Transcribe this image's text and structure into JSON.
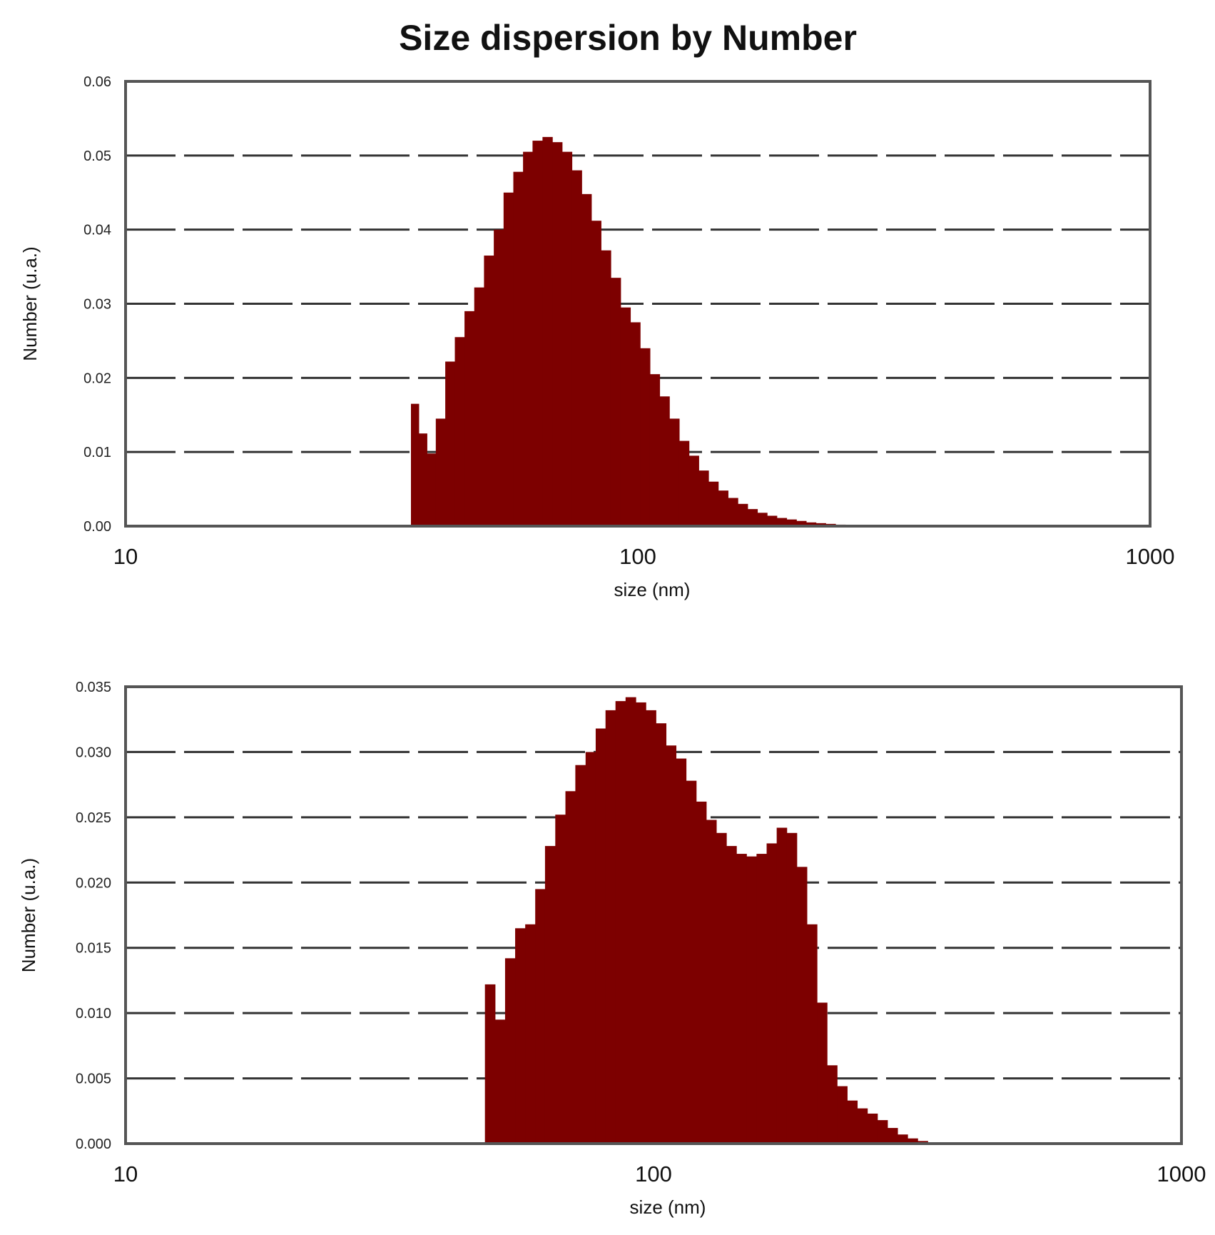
{
  "title": "Size dispersion by Number",
  "chart_data": [
    {
      "type": "bar",
      "title": "",
      "xlabel": "size (nm)",
      "ylabel": "Number (u.a.)",
      "xscale": "log",
      "xlim": [
        10,
        1000
      ],
      "ylim": [
        0,
        0.06
      ],
      "xticks": [
        "10",
        "100",
        "1000"
      ],
      "yticks": [
        "0.00",
        "0.01",
        "0.02",
        "0.03",
        "0.04",
        "0.05",
        "0.06"
      ],
      "grid": true,
      "color": "#7d0000",
      "x": [
        36.7,
        38.0,
        39.5,
        41.2,
        43.0,
        44.9,
        46.9,
        49.0,
        51.2,
        53.5,
        55.9,
        58.4,
        61.0,
        63.7,
        66.6,
        69.6,
        72.7,
        76.0,
        79.4,
        82.9,
        86.6,
        90.5,
        94.6,
        98.8,
        103.3,
        107.9,
        112.7,
        117.8,
        123.1,
        128.6,
        134.4,
        140.4,
        146.7,
        153.3,
        160.2,
        167.4,
        174.9,
        182.7,
        190.9,
        199.5,
        208.5,
        217.8,
        227.6,
        237.8,
        248.5,
        259.7,
        271.3,
        283.5
      ],
      "values": [
        0.0165,
        0.0125,
        0.0098,
        0.0145,
        0.0222,
        0.0255,
        0.029,
        0.0322,
        0.0365,
        0.04,
        0.045,
        0.0478,
        0.0505,
        0.052,
        0.0525,
        0.0518,
        0.0505,
        0.048,
        0.0448,
        0.0412,
        0.0372,
        0.0335,
        0.0295,
        0.0275,
        0.024,
        0.0205,
        0.0175,
        0.0145,
        0.0115,
        0.0095,
        0.0075,
        0.006,
        0.0048,
        0.0038,
        0.003,
        0.0023,
        0.0018,
        0.0014,
        0.0011,
        0.0009,
        0.0007,
        0.0005,
        0.0004,
        0.0003,
        0.0002,
        0.00015,
        0.0001,
        5e-05
      ]
    },
    {
      "type": "bar",
      "title": "",
      "xlabel": "size (nm)",
      "ylabel": "Number (u.a.)",
      "xscale": "log",
      "xlim": [
        10,
        1000
      ],
      "ylim": [
        0,
        0.035
      ],
      "xticks": [
        "10",
        "100",
        "1000"
      ],
      "yticks": [
        "0.000",
        "0.005",
        "0.010",
        "0.015",
        "0.020",
        "0.025",
        "0.030",
        "0.035"
      ],
      "grid": true,
      "color": "#7d0000",
      "x": [
        49.0,
        51.2,
        53.5,
        55.9,
        58.4,
        61.0,
        63.7,
        66.6,
        69.6,
        72.7,
        76.0,
        79.4,
        82.9,
        86.6,
        90.5,
        94.6,
        98.8,
        103.3,
        107.9,
        112.7,
        117.8,
        123.1,
        128.6,
        134.4,
        140.4,
        146.7,
        153.3,
        160.2,
        167.4,
        174.9,
        182.7,
        190.9,
        199.5,
        208.5,
        217.8,
        227.6,
        237.8,
        248.5,
        259.7,
        271.3,
        283.5,
        296.2,
        309.5,
        323.4,
        337.9,
        353.1,
        368.9,
        385.5,
        402.8,
        420.9,
        439.8,
        459.5,
        480.2,
        501.7,
        524.3,
        547.8,
        572.4
      ],
      "values": [
        0.0122,
        0.0095,
        0.0142,
        0.0165,
        0.0168,
        0.0195,
        0.0228,
        0.0252,
        0.027,
        0.029,
        0.03,
        0.0318,
        0.0332,
        0.0339,
        0.0342,
        0.0338,
        0.0332,
        0.0322,
        0.0305,
        0.0295,
        0.0278,
        0.0262,
        0.0248,
        0.0238,
        0.0228,
        0.0222,
        0.022,
        0.0222,
        0.023,
        0.0242,
        0.0238,
        0.0212,
        0.0168,
        0.0108,
        0.006,
        0.0044,
        0.0033,
        0.0027,
        0.0023,
        0.0018,
        0.0012,
        0.0007,
        0.0004,
        0.0002,
        0.0001,
        5e-05,
        3e-05,
        2e-05,
        1e-05,
        0,
        0,
        0,
        0,
        0,
        0,
        0,
        0
      ]
    }
  ]
}
